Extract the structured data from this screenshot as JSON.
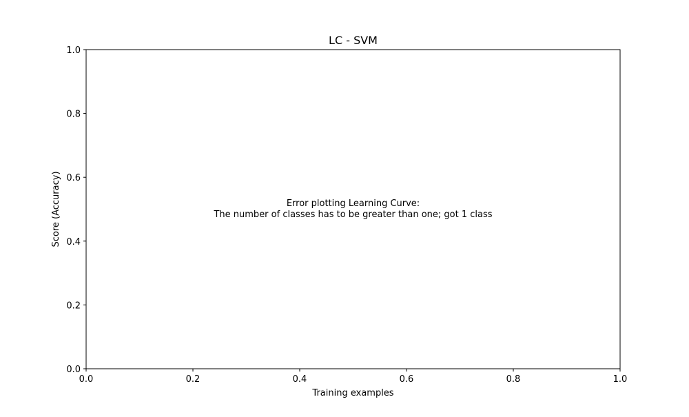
{
  "chart_data": {
    "type": "line",
    "title": "LC - SVM",
    "xlabel": "Training examples",
    "ylabel": "Score (Accuracy)",
    "xlim": [
      0.0,
      1.0
    ],
    "ylim": [
      0.0,
      1.0
    ],
    "xticks": [
      0.0,
      0.2,
      0.4,
      0.6,
      0.8,
      1.0
    ],
    "yticks": [
      0.0,
      0.2,
      0.4,
      0.6,
      0.8,
      1.0
    ],
    "xtick_labels": [
      "0.0",
      "0.2",
      "0.4",
      "0.6",
      "0.8",
      "1.0"
    ],
    "ytick_labels": [
      "0.0",
      "0.2",
      "0.4",
      "0.6",
      "0.8",
      "1.0"
    ],
    "grid": false,
    "series": [],
    "annotation": {
      "line1": "Error plotting Learning Curve:",
      "line2": "The number of classes has to be greater than one; got 1 class"
    }
  }
}
